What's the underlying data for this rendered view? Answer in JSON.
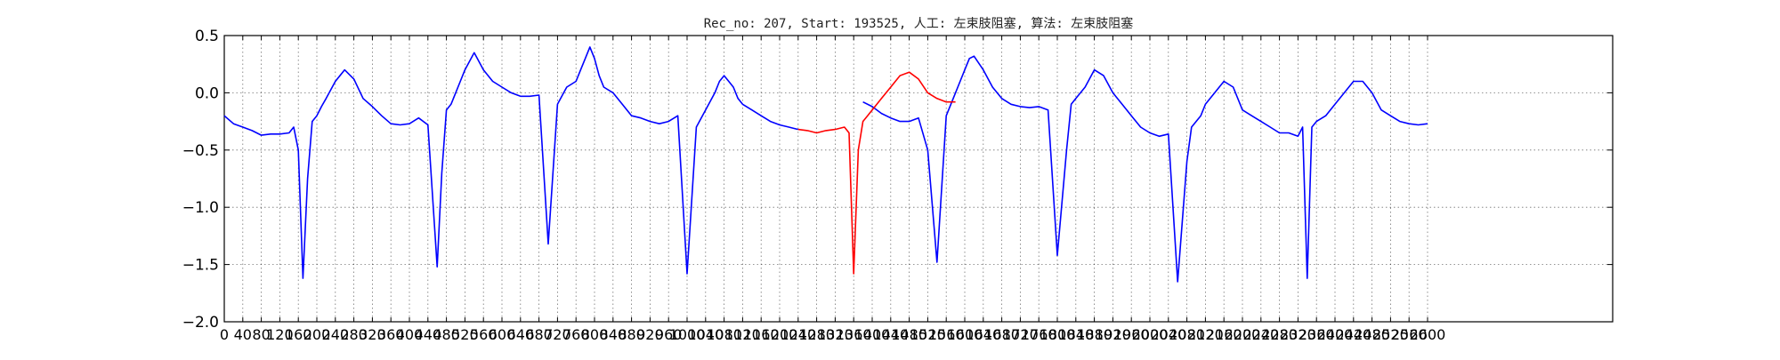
{
  "chart_data": {
    "type": "line",
    "title": "Rec_no: 207, Start: 193525, 人工: 左束肢阻塞, 算法: 左束肢阻塞",
    "xlabel": "",
    "ylabel": "",
    "xlim": [
      0,
      3000
    ],
    "ylim": [
      -2.0,
      0.5
    ],
    "grid": true,
    "yticks": [
      -2.0,
      -1.5,
      -1.0,
      -0.5,
      0.0,
      0.5
    ],
    "ytick_labels": [
      "−2.0",
      "−1.5",
      "−1.0",
      "−0.5",
      "0.0",
      "0.5"
    ],
    "xticks": [
      0,
      40,
      80,
      120,
      160,
      200,
      240,
      280,
      320,
      360,
      400,
      440,
      480,
      520,
      560,
      600,
      640,
      680,
      720,
      760,
      800,
      840,
      880,
      920,
      960,
      1000,
      1040,
      1080,
      1120,
      1160,
      1200,
      1240,
      1280,
      1320,
      1360,
      1400,
      1440,
      1480,
      1520,
      1560,
      1600,
      1640,
      1680,
      1720,
      1760,
      1800,
      1840,
      1880,
      1920,
      1960,
      2000,
      2040,
      2080,
      2120,
      2160,
      2200,
      2240,
      2280,
      2320,
      2360,
      2400,
      2440,
      2480,
      2520,
      2560,
      2600
    ],
    "series": [
      {
        "color": "#0000ff",
        "segments": [
          {
            "x": [
              0,
              20,
              40,
              60,
              80,
              100,
              120,
              140,
              150,
              160,
              170,
              180,
              190,
              200,
              210,
              220,
              240,
              260,
              280,
              300,
              320,
              340,
              360,
              380,
              400,
              420,
              440,
              460,
              470,
              480,
              490,
              500,
              510,
              520,
              540,
              560,
              580,
              600,
              620,
              640,
              660,
              680,
              700,
              720,
              740,
              760,
              770,
              780,
              790,
              800,
              810,
              820,
              840,
              860,
              880,
              900,
              920,
              940,
              960,
              980,
              1000,
              1020,
              1040,
              1060,
              1070,
              1080,
              1090,
              1100,
              1110,
              1120,
              1140,
              1160,
              1180,
              1200,
              1220,
              1240
            ],
            "y": [
              -0.2,
              -0.27,
              -0.3,
              -0.33,
              -0.37,
              -0.36,
              -0.36,
              -0.35,
              -0.3,
              -0.5,
              -1.62,
              -0.75,
              -0.25,
              -0.2,
              -0.12,
              -0.05,
              0.1,
              0.2,
              0.12,
              -0.05,
              -0.12,
              -0.2,
              -0.27,
              -0.28,
              -0.27,
              -0.22,
              -0.28,
              -1.52,
              -0.7,
              -0.15,
              -0.1,
              0.0,
              0.1,
              0.2,
              0.35,
              0.2,
              0.1,
              0.05,
              0.0,
              -0.03,
              -0.03,
              -0.02,
              -1.32,
              -0.1,
              0.05,
              0.1,
              0.2,
              0.3,
              0.4,
              0.3,
              0.15,
              0.05,
              0.0,
              -0.1,
              -0.2,
              -0.22,
              -0.25,
              -0.27,
              -0.25,
              -0.2,
              -1.58,
              -0.3,
              -0.15,
              0.0,
              0.1,
              0.15,
              0.1,
              0.05,
              -0.05,
              -0.1,
              -0.15,
              -0.2,
              -0.25,
              -0.28,
              -0.3,
              -0.32
            ]
          },
          {
            "x": [
              1380,
              1400,
              1420,
              1440,
              1460,
              1480,
              1500,
              1520,
              1540,
              1560,
              1570,
              1580,
              1590,
              1600,
              1610,
              1620,
              1640,
              1660,
              1680,
              1700,
              1720,
              1740,
              1760,
              1780,
              1800,
              1820,
              1830,
              1840,
              1850,
              1860,
              1880,
              1900,
              1920,
              1940,
              1960,
              1980,
              2000,
              2020,
              2040,
              2060,
              2080,
              2090,
              2100,
              2110,
              2120,
              2140,
              2160,
              2180,
              2200,
              2220,
              2240,
              2260,
              2280,
              2300,
              2320,
              2330,
              2340,
              2350,
              2360,
              2380,
              2400,
              2420,
              2440,
              2460,
              2480,
              2500,
              2520,
              2540,
              2560,
              2580,
              2600
            ],
            "y": [
              -0.08,
              -0.12,
              -0.18,
              -0.22,
              -0.25,
              -0.25,
              -0.22,
              -0.5,
              -1.48,
              -0.2,
              -0.1,
              0.0,
              0.1,
              0.2,
              0.3,
              0.32,
              0.2,
              0.05,
              -0.05,
              -0.1,
              -0.12,
              -0.13,
              -0.12,
              -0.15,
              -1.42,
              -0.5,
              -0.1,
              -0.05,
              0.0,
              0.05,
              0.2,
              0.15,
              0.0,
              -0.1,
              -0.2,
              -0.3,
              -0.35,
              -0.38,
              -0.36,
              -1.65,
              -0.6,
              -0.3,
              -0.25,
              -0.2,
              -0.1,
              0.0,
              0.1,
              0.05,
              -0.15,
              -0.2,
              -0.25,
              -0.3,
              -0.35,
              -0.35,
              -0.38,
              -0.3,
              -1.62,
              -0.3,
              -0.25,
              -0.2,
              -0.1,
              0.0,
              0.1,
              0.1,
              0.0,
              -0.15,
              -0.2,
              -0.25,
              -0.27,
              -0.28,
              -0.27
            ]
          }
        ]
      },
      {
        "color": "#ff0000",
        "segments": [
          {
            "x": [
              1240,
              1260,
              1280,
              1300,
              1320,
              1340,
              1350,
              1360,
              1370,
              1380,
              1390,
              1400,
              1420,
              1440,
              1460,
              1480,
              1500,
              1520,
              1540,
              1560,
              1580
            ],
            "y": [
              -0.32,
              -0.33,
              -0.35,
              -0.33,
              -0.32,
              -0.3,
              -0.35,
              -1.58,
              -0.5,
              -0.25,
              -0.2,
              -0.15,
              -0.05,
              0.05,
              0.15,
              0.18,
              0.12,
              0.0,
              -0.05,
              -0.08,
              -0.08
            ]
          }
        ]
      }
    ]
  }
}
